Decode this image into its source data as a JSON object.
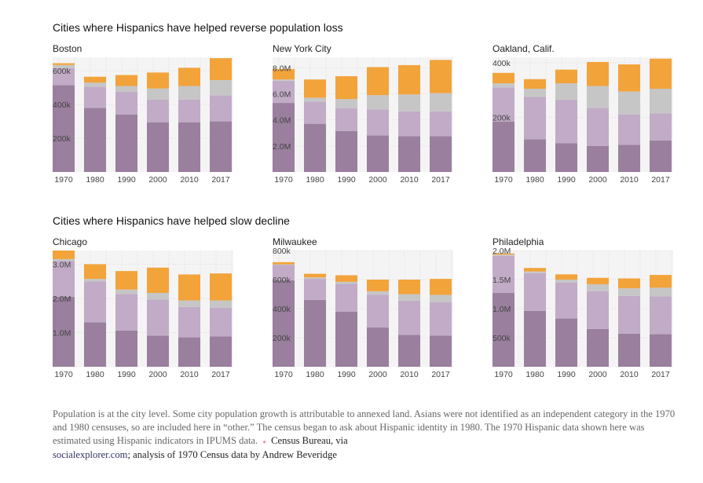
{
  "colors": {
    "white_non_hispanic": "#9a7f9e",
    "black": "#c1abc6",
    "other": "#c6c6c6",
    "hispanic": "#f2a33a",
    "plot_bg": "#f4f4f4",
    "grid": "#dcdcdc"
  },
  "sections": [
    {
      "title": "Cities where Hispanics have helped reverse population loss"
    },
    {
      "title": "Cities where Hispanics have helped slow decline"
    }
  ],
  "note": {
    "text": "Population is at the city level. Some city population growth is attributable to annexed land. Asians were not identified as an independent category in the 1970 and 1980 censuses, so are included here in “other.” The census began to ask about Hispanic identity in 1980. The 1970 Hispanic data shown here was estimated using Hispanic indicators in IPUMS data.",
    "source_label": "Census Bureau, via",
    "source_link": "socialexplorer.com",
    "source_rest": "; analysis of 1970 Census data by Andrew Beveridge"
  },
  "chart_data": [
    {
      "type": "bar",
      "stacked": true,
      "title": "Boston",
      "categories": [
        "1970",
        "1980",
        "1990",
        "2000",
        "2010",
        "2017"
      ],
      "ylim": [
        0,
        680000
      ],
      "yticks": [
        200000,
        400000,
        600000
      ],
      "ytick_labels": [
        "200k",
        "400k",
        "600k"
      ],
      "series": [
        {
          "values": [
            515000,
            380000,
            340000,
            295000,
            295000,
            300000
          ]
        },
        {
          "values": [
            100000,
            125000,
            135000,
            135000,
            135000,
            155000
          ]
        },
        {
          "values": [
            20000,
            25000,
            35000,
            65000,
            80000,
            90000
          ]
        },
        {
          "values": [
            10000,
            35000,
            65000,
            95000,
            108000,
            130000
          ]
        }
      ]
    },
    {
      "type": "bar",
      "stacked": true,
      "title": "New York City",
      "categories": [
        "1970",
        "1980",
        "1990",
        "2000",
        "2010",
        "2017"
      ],
      "ylim": [
        0,
        8800000
      ],
      "yticks": [
        2000000,
        4000000,
        6000000,
        8000000
      ],
      "ytick_labels": [
        "2.0M",
        "4.0M",
        "6.0M",
        "8.0M"
      ],
      "series": [
        {
          "values": [
            5300000,
            3700000,
            3150000,
            2800000,
            2750000,
            2750000
          ]
        },
        {
          "values": [
            1700000,
            1700000,
            1750000,
            2000000,
            1900000,
            1900000
          ]
        },
        {
          "values": [
            100000,
            300000,
            700000,
            1100000,
            1300000,
            1400000
          ]
        },
        {
          "values": [
            800000,
            1400000,
            1750000,
            2150000,
            2250000,
            2550000
          ]
        }
      ]
    },
    {
      "type": "bar",
      "stacked": true,
      "title": "Oakland, Calif.",
      "categories": [
        "1970",
        "1980",
        "1990",
        "2000",
        "2010",
        "2017"
      ],
      "ylim": [
        0,
        420000
      ],
      "yticks": [
        200000,
        400000
      ],
      "ytick_labels": [
        "200k",
        "400k"
      ],
      "series": [
        {
          "values": [
            185000,
            120000,
            105000,
            95000,
            100000,
            115000
          ]
        },
        {
          "values": [
            125000,
            155000,
            160000,
            140000,
            110000,
            100000
          ]
        },
        {
          "values": [
            15000,
            30000,
            60000,
            80000,
            85000,
            90000
          ]
        },
        {
          "values": [
            38000,
            35000,
            50000,
            88000,
            99000,
            110000
          ]
        }
      ]
    },
    {
      "type": "bar",
      "stacked": true,
      "title": "Chicago",
      "categories": [
        "1970",
        "1980",
        "1990",
        "2000",
        "2010",
        "2017"
      ],
      "ylim": [
        0,
        3400000
      ],
      "yticks": [
        1000000,
        2000000,
        3000000
      ],
      "ytick_labels": [
        "1.0M",
        "2.0M",
        "3.0M"
      ],
      "series": [
        {
          "values": [
            2050000,
            1300000,
            1060000,
            910000,
            860000,
            890000
          ]
        },
        {
          "values": [
            1050000,
            1200000,
            1070000,
            1060000,
            890000,
            840000
          ]
        },
        {
          "values": [
            50000,
            70000,
            130000,
            190000,
            190000,
            210000
          ]
        },
        {
          "values": [
            250000,
            430000,
            540000,
            740000,
            760000,
            790000
          ]
        }
      ]
    },
    {
      "type": "bar",
      "stacked": true,
      "title": "Milwaukee",
      "categories": [
        "1970",
        "1980",
        "1990",
        "2000",
        "2010",
        "2017"
      ],
      "ylim": [
        0,
        800000
      ],
      "yticks": [
        200000,
        400000,
        600000,
        800000
      ],
      "ytick_labels": [
        "200k",
        "400k",
        "600k",
        "800k"
      ],
      "series": [
        {
          "values": [
            595000,
            460000,
            380000,
            270000,
            220000,
            215000
          ]
        },
        {
          "values": [
            105000,
            145000,
            190000,
            225000,
            235000,
            230000
          ]
        },
        {
          "values": [
            5000,
            10000,
            15000,
            25000,
            45000,
            50000
          ]
        },
        {
          "values": [
            15000,
            25000,
            45000,
            80000,
            100000,
            110000
          ]
        }
      ]
    },
    {
      "type": "bar",
      "stacked": true,
      "title": "Philadelphia",
      "categories": [
        "1970",
        "1980",
        "1990",
        "2000",
        "2010",
        "2017"
      ],
      "ylim": [
        0,
        2000000
      ],
      "yticks": [
        500000,
        1000000,
        1500000,
        2000000
      ],
      "ytick_labels": [
        "500k",
        "1.0M",
        "1.5M",
        "2.0M"
      ],
      "series": [
        {
          "values": [
            1270000,
            960000,
            830000,
            650000,
            570000,
            560000
          ]
        },
        {
          "values": [
            640000,
            650000,
            620000,
            650000,
            650000,
            650000
          ]
        },
        {
          "values": [
            20000,
            30000,
            50000,
            120000,
            130000,
            150000
          ]
        },
        {
          "values": [
            20000,
            60000,
            90000,
            110000,
            170000,
            220000
          ]
        }
      ]
    }
  ]
}
